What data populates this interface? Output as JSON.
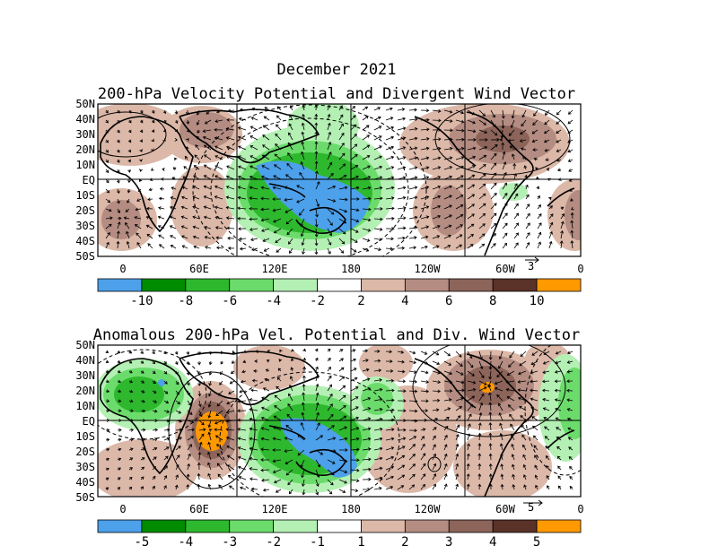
{
  "page": {
    "title": "December 2021"
  },
  "panels": [
    {
      "title": "200-hPa Velocity Potential and Divergent Wind Vector",
      "lat_labels": [
        "50N",
        "40N",
        "30N",
        "20N",
        "10N",
        "EQ",
        "10S",
        "20S",
        "30S",
        "40S",
        "50S"
      ],
      "lon_labels": [
        "0",
        "60E",
        "120E",
        "180",
        "120W",
        "60W",
        "0"
      ],
      "vector_ref": "3",
      "colorbar_labels": [
        "-10",
        "-8",
        "-6",
        "-4",
        "-2",
        "2",
        "4",
        "6",
        "8",
        "10"
      ],
      "colorbar_colors": [
        "#4da0ea",
        "#008c00",
        "#2eb82e",
        "#6bdc6b",
        "#b4f0b4",
        "#ffffff",
        "#dcb8a8",
        "#b48c82",
        "#8c645a",
        "#5a3228",
        "#ff9900"
      ]
    },
    {
      "title": "Anomalous 200-hPa Vel. Potential and Div. Wind Vector",
      "lat_labels": [
        "50N",
        "40N",
        "30N",
        "20N",
        "10N",
        "EQ",
        "10S",
        "20S",
        "30S",
        "40S",
        "50S"
      ],
      "lon_labels": [
        "0",
        "60E",
        "120E",
        "180",
        "120W",
        "60W",
        "0"
      ],
      "vector_ref": "5",
      "colorbar_labels": [
        "-5",
        "-4",
        "-3",
        "-2",
        "-1",
        "1",
        "2",
        "3",
        "4",
        "5"
      ],
      "colorbar_colors": [
        "#4da0ea",
        "#008c00",
        "#2eb82e",
        "#6bdc6b",
        "#b4f0b4",
        "#ffffff",
        "#dcb8a8",
        "#b48c82",
        "#8c645a",
        "#5a3228",
        "#ff9900"
      ]
    }
  ]
}
